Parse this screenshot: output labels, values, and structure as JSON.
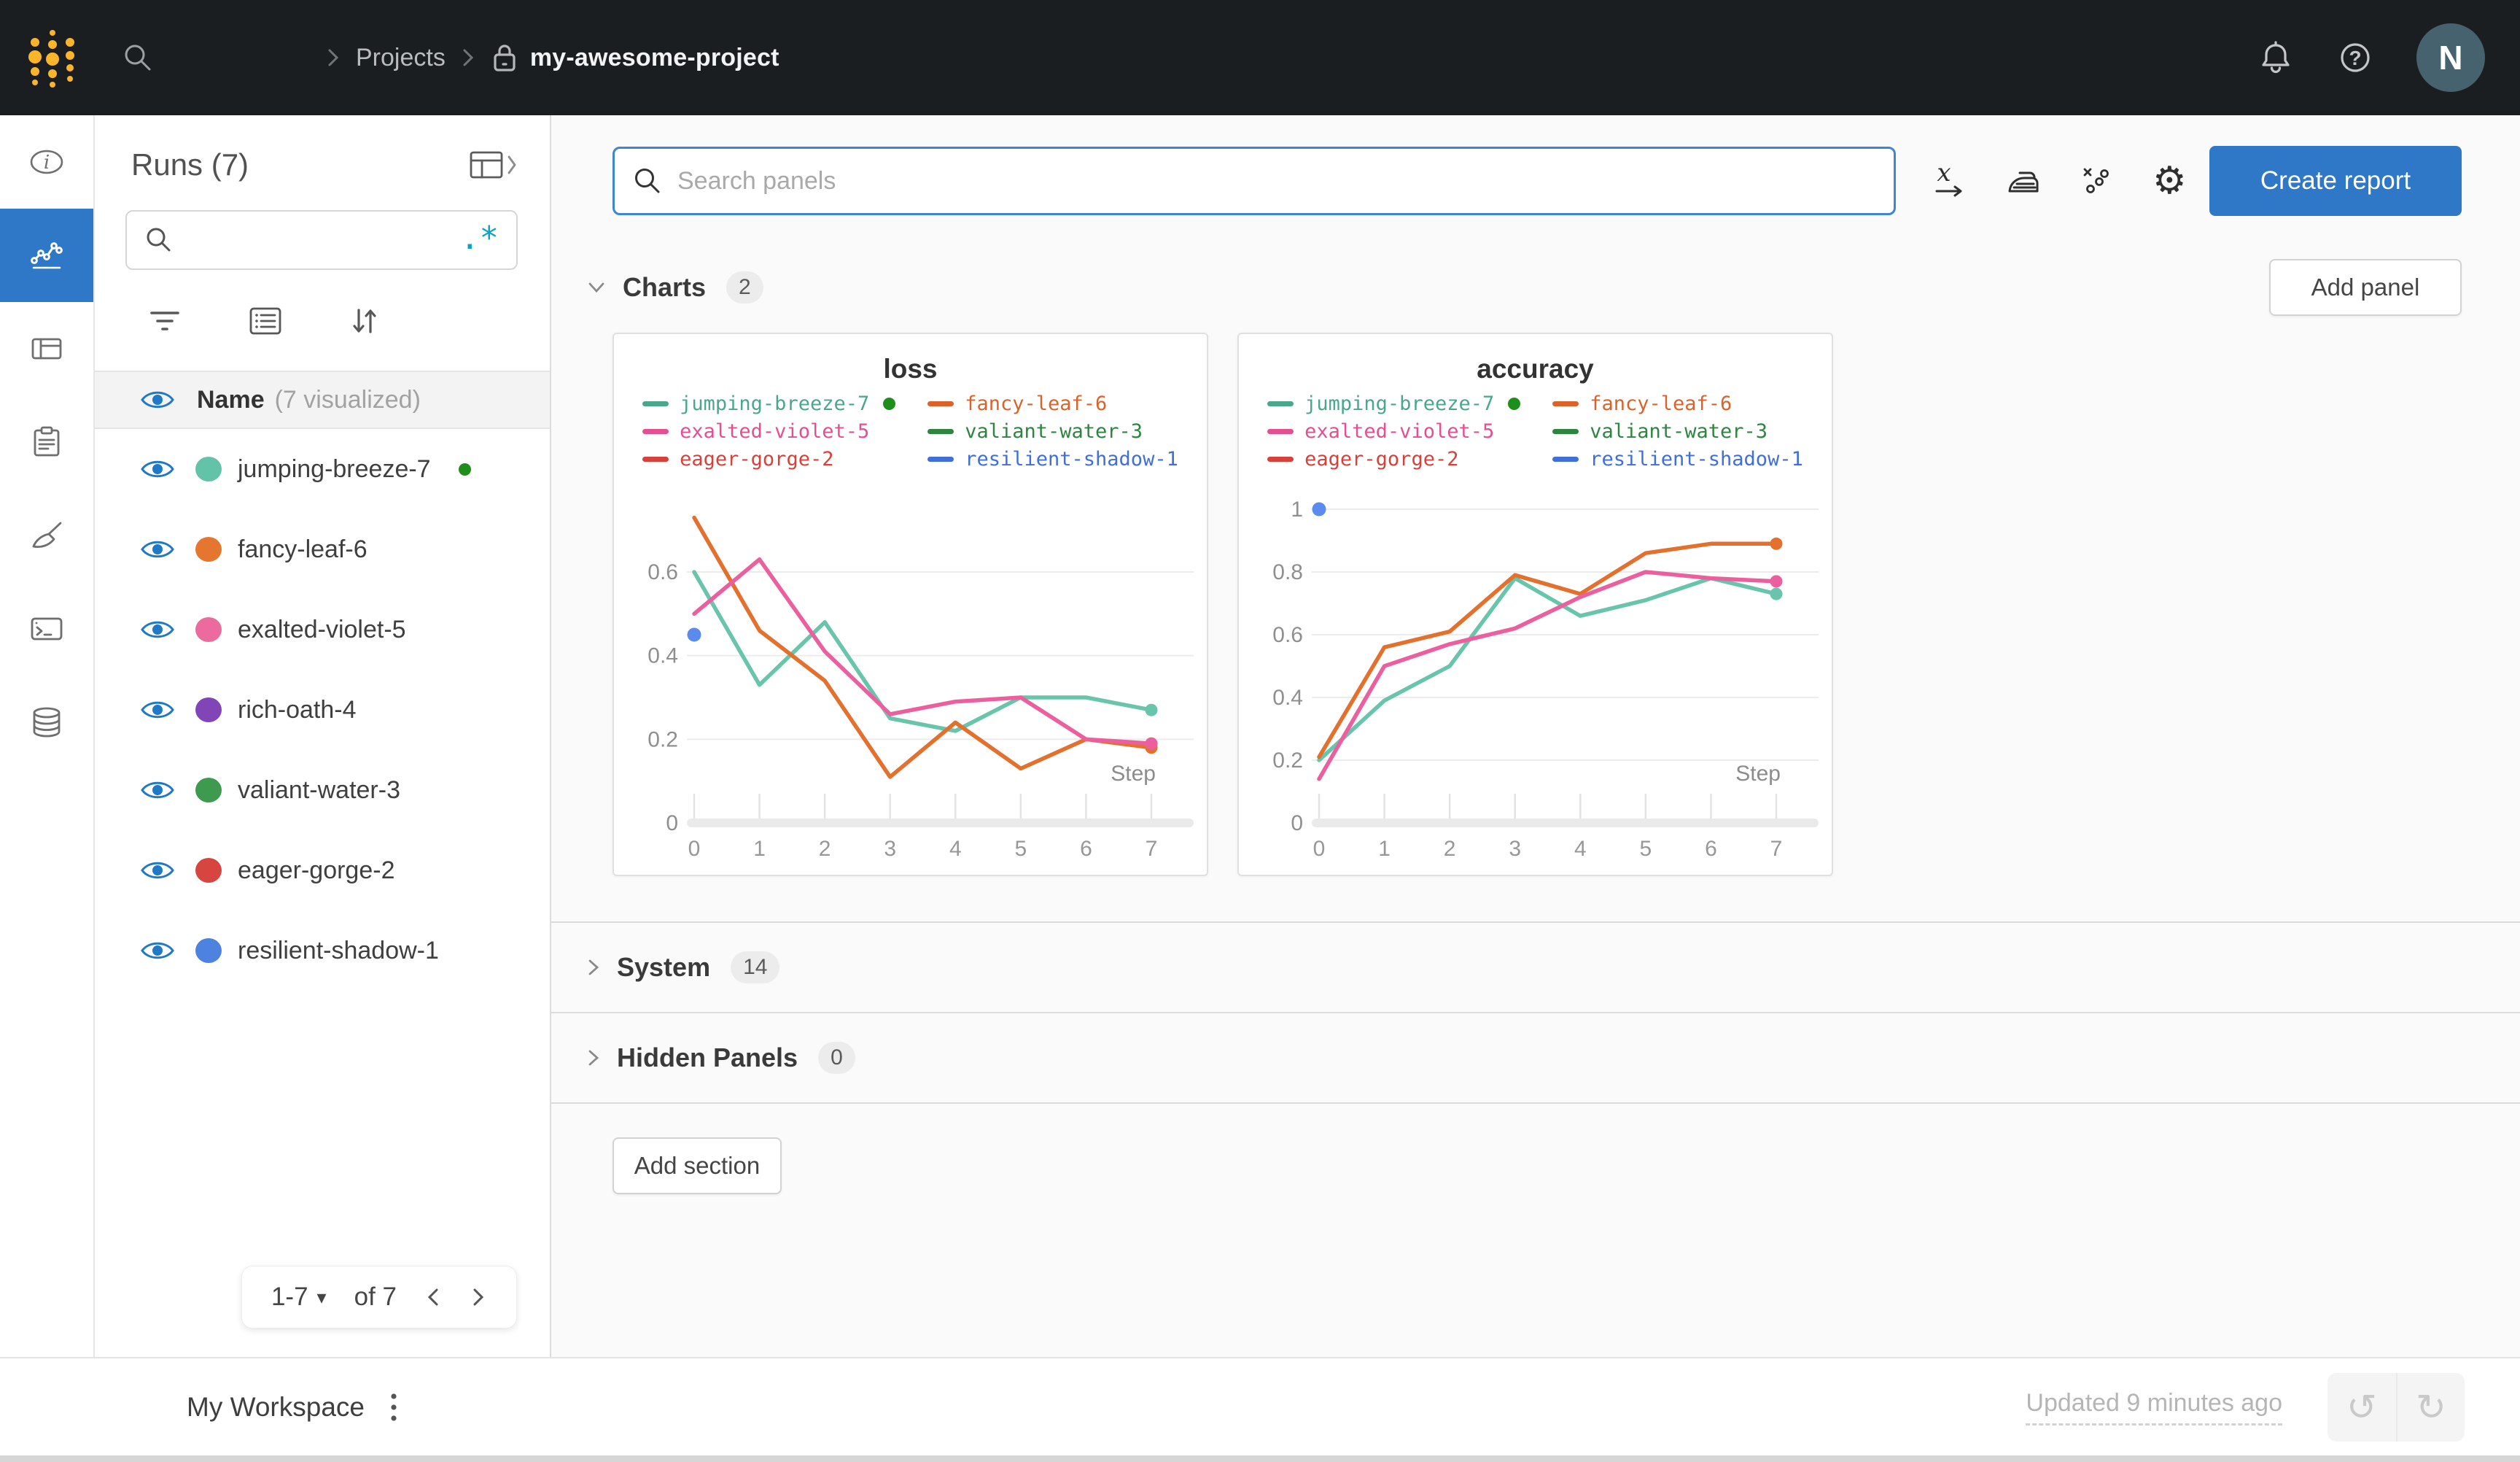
{
  "colors": {
    "accent": "#2e78c7",
    "running_green": "#1e8f1a",
    "topbar_bg": "#1b1e21",
    "logo_gold": "#fcb42b"
  },
  "topbar": {
    "breadcrumb": {
      "section": "Projects",
      "project": "my-awesome-project"
    },
    "avatar_initial": "N"
  },
  "rail_items": [
    {
      "icon": "info-icon",
      "active": false
    },
    {
      "icon": "workspace-chart-icon",
      "active": true
    },
    {
      "icon": "runs-table-icon",
      "active": false
    },
    {
      "icon": "jobs-clipboard-icon",
      "active": false
    },
    {
      "icon": "sweeps-broom-icon",
      "active": false
    },
    {
      "icon": "automations-terminal-icon",
      "active": false
    },
    {
      "icon": "artifacts-database-icon",
      "active": false
    }
  ],
  "sidebar": {
    "title": "Runs (7)",
    "regex_toggle": ".*",
    "header_name": "Name",
    "header_visualized": "(7 visualized)",
    "runs": [
      {
        "name": "jumping-breeze-7",
        "color": "#63c3a9",
        "running": true
      },
      {
        "name": "fancy-leaf-6",
        "color": "#e4762f",
        "running": false
      },
      {
        "name": "exalted-violet-5",
        "color": "#ec6b9f",
        "running": false
      },
      {
        "name": "rich-oath-4",
        "color": "#8245b8",
        "running": false
      },
      {
        "name": "valiant-water-3",
        "color": "#3d9a4e",
        "running": false
      },
      {
        "name": "eager-gorge-2",
        "color": "#d6453f",
        "running": false
      },
      {
        "name": "resilient-shadow-1",
        "color": "#4d82e0",
        "running": false
      }
    ],
    "pagination": {
      "range_label": "1-7",
      "of_label": "of 7"
    }
  },
  "main": {
    "search_placeholder": "Search panels",
    "create_report_label": "Create report",
    "add_panel_label": "Add panel",
    "charts_section": {
      "label": "Charts",
      "count": "2"
    },
    "system_section": {
      "label": "System",
      "count": "14"
    },
    "hidden_section": {
      "label": "Hidden Panels",
      "count": "0"
    },
    "add_section_label": "Add section"
  },
  "footer": {
    "workspace_label": "My Workspace",
    "updated_label": "Updated 9 minutes ago"
  },
  "chart_data": [
    {
      "type": "line",
      "title": "loss",
      "xlabel": "Step",
      "x": [
        0,
        1,
        2,
        3,
        4,
        5,
        6,
        7
      ],
      "xlim": [
        0,
        7
      ],
      "ylim": [
        0,
        0.75
      ],
      "yticks": [
        0,
        0.2,
        0.4,
        0.6
      ],
      "grid": true,
      "legend_position": "top",
      "legend": [
        {
          "name": "jumping-breeze-7",
          "color": "#4aa78c",
          "running_dot": true
        },
        {
          "name": "fancy-leaf-6",
          "color": "#d9632a",
          "running_dot": false
        },
        {
          "name": "exalted-violet-5",
          "color": "#e54f92",
          "running_dot": false
        },
        {
          "name": "valiant-water-3",
          "color": "#2e8540",
          "running_dot": false
        },
        {
          "name": "eager-gorge-2",
          "color": "#d8403a",
          "running_dot": false
        },
        {
          "name": "resilient-shadow-1",
          "color": "#3f6fd8",
          "running_dot": false
        }
      ],
      "series": [
        {
          "name": "jumping-breeze-7",
          "color": "#68c5ab",
          "values": [
            0.6,
            0.33,
            0.48,
            0.25,
            0.22,
            0.3,
            0.3,
            0.27
          ]
        },
        {
          "name": "fancy-leaf-6",
          "color": "#e4702e",
          "values": [
            0.73,
            0.46,
            0.34,
            0.11,
            0.24,
            0.13,
            0.2,
            0.18
          ]
        },
        {
          "name": "exalted-violet-5",
          "color": "#ec5f9e",
          "values": [
            0.5,
            0.63,
            0.41,
            0.26,
            0.29,
            0.3,
            0.2,
            0.19
          ]
        }
      ],
      "points": [
        {
          "name": "resilient-shadow-1",
          "color": "#5b8bef",
          "x": 0,
          "y": 0.45
        }
      ]
    },
    {
      "type": "line",
      "title": "accuracy",
      "xlabel": "Step",
      "x": [
        0,
        1,
        2,
        3,
        4,
        5,
        6,
        7
      ],
      "xlim": [
        0,
        7
      ],
      "ylim": [
        0,
        1.0
      ],
      "yticks": [
        0,
        0.2,
        0.4,
        0.6,
        0.8,
        1
      ],
      "grid": true,
      "legend_position": "top",
      "legend": [
        {
          "name": "jumping-breeze-7",
          "color": "#4aa78c",
          "running_dot": true
        },
        {
          "name": "fancy-leaf-6",
          "color": "#d9632a",
          "running_dot": false
        },
        {
          "name": "exalted-violet-5",
          "color": "#e54f92",
          "running_dot": false
        },
        {
          "name": "valiant-water-3",
          "color": "#2e8540",
          "running_dot": false
        },
        {
          "name": "eager-gorge-2",
          "color": "#d8403a",
          "running_dot": false
        },
        {
          "name": "resilient-shadow-1",
          "color": "#3f6fd8",
          "running_dot": false
        }
      ],
      "series": [
        {
          "name": "jumping-breeze-7",
          "color": "#68c5ab",
          "values": [
            0.2,
            0.39,
            0.5,
            0.78,
            0.66,
            0.71,
            0.78,
            0.73
          ]
        },
        {
          "name": "fancy-leaf-6",
          "color": "#e4702e",
          "values": [
            0.21,
            0.56,
            0.61,
            0.79,
            0.73,
            0.86,
            0.89,
            0.89
          ]
        },
        {
          "name": "exalted-violet-5",
          "color": "#ec5f9e",
          "values": [
            0.14,
            0.5,
            0.57,
            0.62,
            0.72,
            0.8,
            0.78,
            0.77
          ]
        }
      ],
      "points": [
        {
          "name": "resilient-shadow-1",
          "color": "#5b8bef",
          "x": 0,
          "y": 1.0
        }
      ]
    }
  ]
}
